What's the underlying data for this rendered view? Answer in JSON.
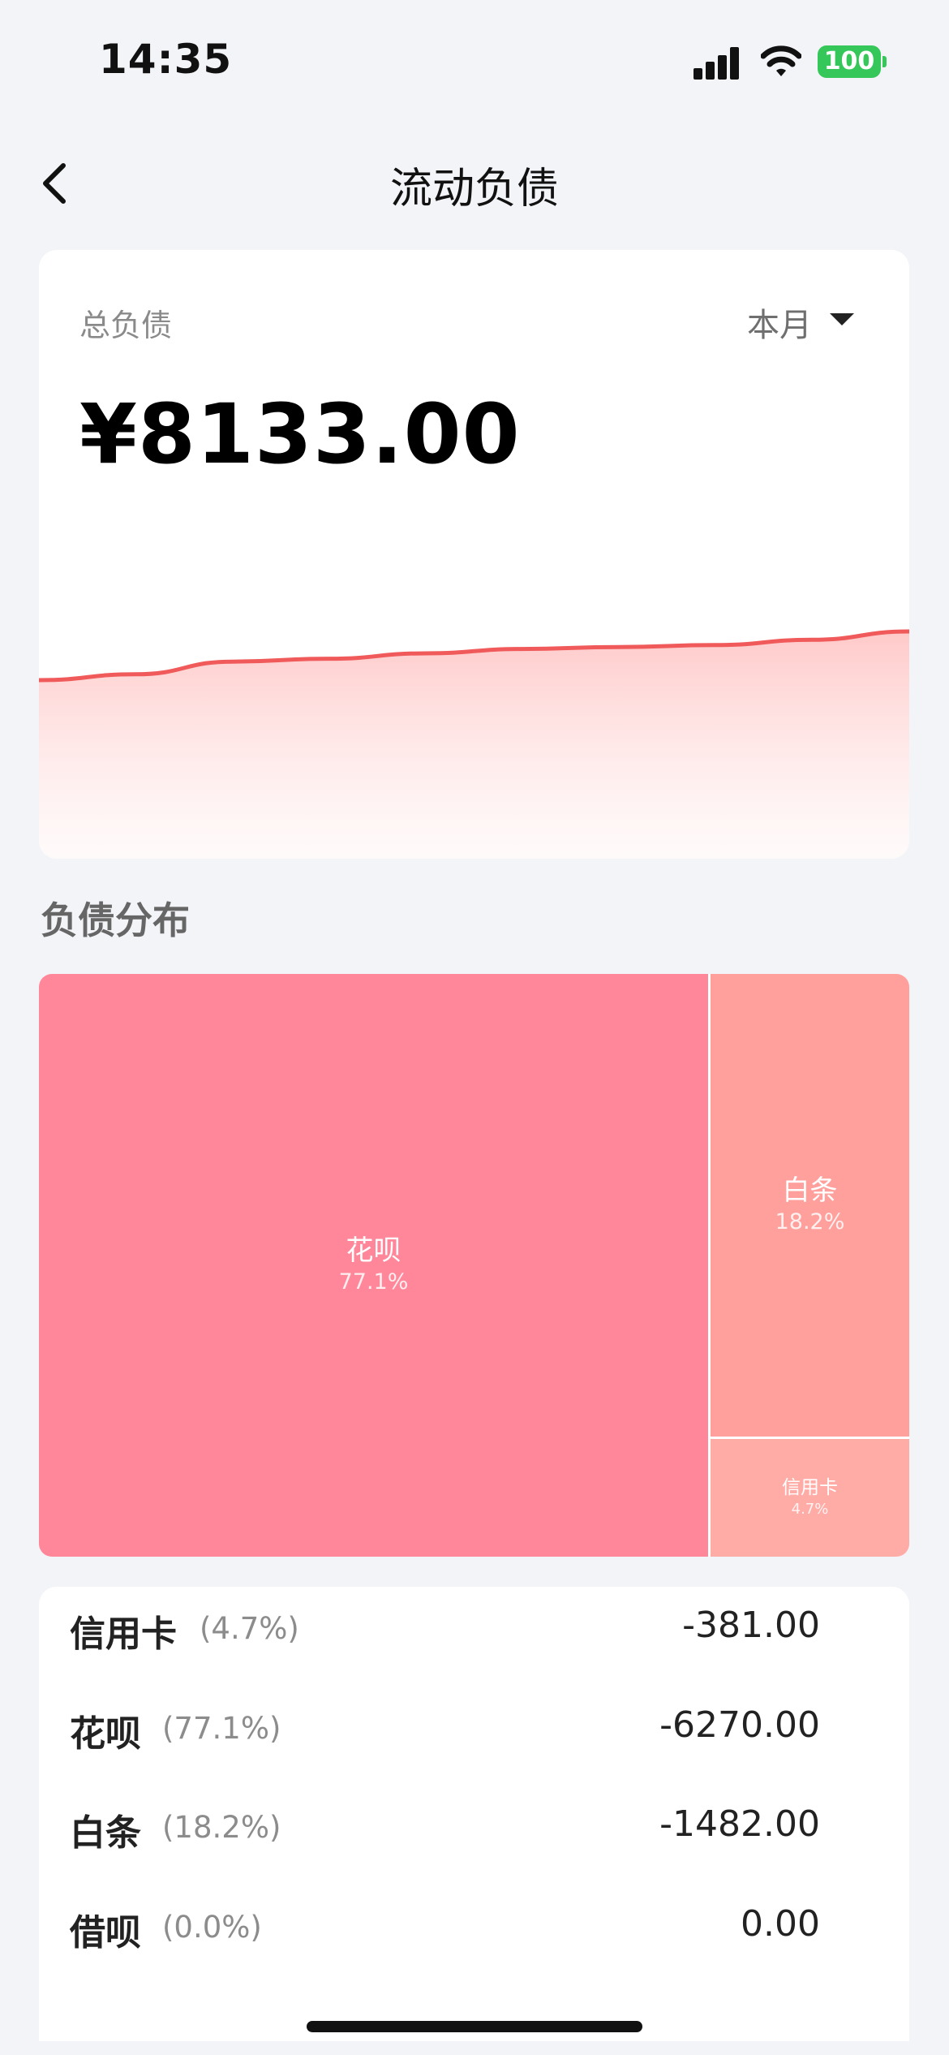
{
  "status_bar": {
    "time": "14:35",
    "battery": "100"
  },
  "nav": {
    "title": "流动负债"
  },
  "summary": {
    "label": "总负债",
    "period": "本月",
    "amount": "¥8133.00",
    "trend_color": "#f05a5a",
    "trend_values": [
      0.0,
      0.12,
      0.38,
      0.44,
      0.55,
      0.64,
      0.68,
      0.72,
      0.83,
      1.0
    ]
  },
  "distribution": {
    "title": "负债分布",
    "tiles": [
      {
        "name": "花呗",
        "pct": "77.1%",
        "color": "#ff8799"
      },
      {
        "name": "白条",
        "pct": "18.2%",
        "color": "#ffa09c"
      },
      {
        "name": "信用卡",
        "pct": "4.7%",
        "color": "#ffaba6"
      }
    ]
  },
  "list": [
    {
      "name": "信用卡",
      "pct": "(4.7%)",
      "value": "-381.00"
    },
    {
      "name": "花呗",
      "pct": "(77.1%)",
      "value": "-6270.00"
    },
    {
      "name": "白条",
      "pct": "(18.2%)",
      "value": "-1482.00"
    },
    {
      "name": "借呗",
      "pct": "(0.0%)",
      "value": "0.00"
    }
  ]
}
